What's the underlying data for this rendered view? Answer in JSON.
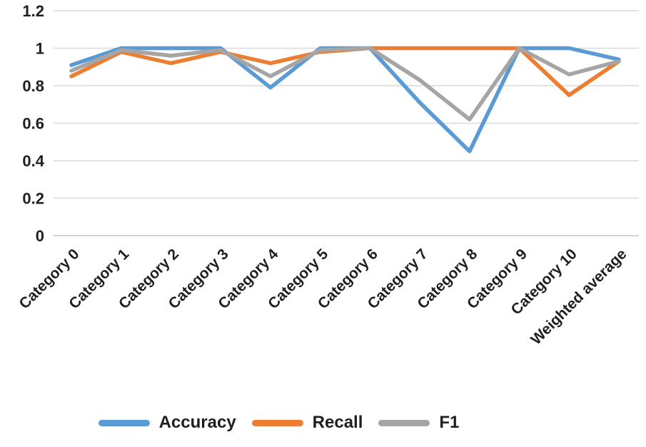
{
  "chart_data": {
    "type": "line",
    "title": "",
    "xlabel": "",
    "ylabel": "",
    "grid": true,
    "legend_position": "bottom",
    "ylim": [
      0,
      1.2
    ],
    "yticks": [
      0,
      0.2,
      0.4,
      0.6,
      0.8,
      1,
      1.2
    ],
    "ytick_labels": [
      "0",
      "0.2",
      "0.4",
      "0.6",
      "0.8",
      "1",
      "1.2"
    ],
    "categories": [
      "Category 0",
      "Category 1",
      "Category 2",
      "Category 3",
      "Category 4",
      "Category 5",
      "Category 6",
      "Category 7",
      "Category 8",
      "Category 9",
      "Category 10",
      "Weighted average"
    ],
    "series": [
      {
        "name": "Accuracy",
        "color": "#5B9BD5",
        "values": [
          0.91,
          1.0,
          1.0,
          1.0,
          0.79,
          1.0,
          1.0,
          0.71,
          0.45,
          1.0,
          1.0,
          0.94
        ]
      },
      {
        "name": "Recall",
        "color": "#ED7D31",
        "values": [
          0.85,
          0.98,
          0.92,
          0.98,
          0.92,
          0.98,
          1.0,
          1.0,
          1.0,
          1.0,
          0.75,
          0.93
        ]
      },
      {
        "name": "F1",
        "color": "#A5A5A5",
        "values": [
          0.88,
          0.99,
          0.96,
          0.99,
          0.85,
          0.99,
          1.0,
          0.83,
          0.62,
          1.0,
          0.86,
          0.93
        ]
      }
    ],
    "colors": {
      "grid": "#d9d9d9",
      "axis": "#c6c6c6",
      "text": "#1f1f1f",
      "background": "#ffffff"
    }
  }
}
